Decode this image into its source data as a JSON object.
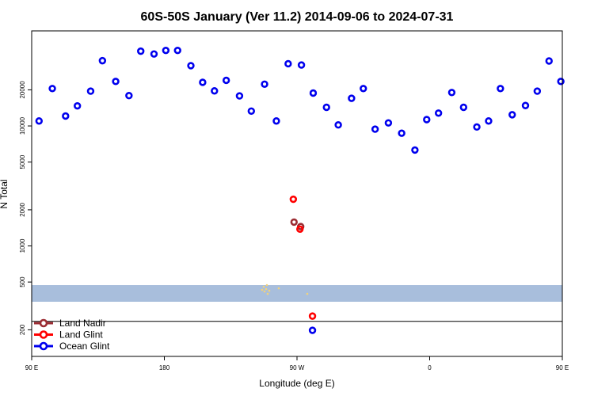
{
  "chart_data": {
    "type": "scatter",
    "title": "60S-50S January (Ver 11.2)   2014-09-06 to 2024-07-31",
    "xlabel": "Longitude (deg E)",
    "ylabel": "N Total",
    "xlim": [
      90,
      450
    ],
    "ylim": [
      120,
      62000
    ],
    "y_scale": "log",
    "x_ticks": [
      {
        "value": 90,
        "label": "90 E"
      },
      {
        "value": 180,
        "label": "180"
      },
      {
        "value": 270,
        "label": "90 W"
      },
      {
        "value": 360,
        "label": "0"
      },
      {
        "value": 450,
        "label": "90 E"
      }
    ],
    "y_ticks": [
      {
        "value": 200,
        "label": "200"
      },
      {
        "value": 500,
        "label": "500"
      },
      {
        "value": 1000,
        "label": "1000"
      },
      {
        "value": 2000,
        "label": "2000"
      },
      {
        "value": 5000,
        "label": "5000"
      },
      {
        "value": 10000,
        "label": "10000"
      },
      {
        "value": 20000,
        "label": "20000"
      }
    ],
    "reference_line_y": 235,
    "legend_position": "bottom-left",
    "series": [
      {
        "name": "Land Nadir",
        "color": "#9b2d33",
        "x": [
          268,
          272.5
        ],
        "y": [
          1580,
          1450
        ]
      },
      {
        "name": "Land Glint",
        "color": "#ff0000",
        "x": [
          267.5,
          272,
          280.5
        ],
        "y": [
          2450,
          1380,
          260
        ]
      },
      {
        "name": "Ocean Glint",
        "color": "#0000ee",
        "x": [
          95,
          104,
          113,
          121,
          130,
          138,
          147,
          156,
          164,
          173,
          181,
          189,
          198,
          206,
          214,
          222,
          231,
          239,
          248,
          256,
          264,
          273,
          281,
          290,
          298,
          307,
          315,
          323,
          332,
          341,
          350,
          358,
          366,
          375,
          383,
          392,
          400,
          408,
          416,
          425,
          433,
          441,
          449,
          280.5
        ],
        "y": [
          11000,
          20500,
          12100,
          14700,
          19500,
          35000,
          23500,
          17900,
          42000,
          39800,
          42600,
          42600,
          31800,
          23100,
          19600,
          24000,
          17800,
          13300,
          22300,
          11000,
          33000,
          32200,
          18800,
          14300,
          10200,
          17000,
          20500,
          9400,
          10600,
          8700,
          6300,
          11300,
          12800,
          19000,
          14300,
          9800,
          11000,
          20500,
          12400,
          14800,
          19500,
          34800,
          23500,
          198
        ]
      }
    ]
  }
}
